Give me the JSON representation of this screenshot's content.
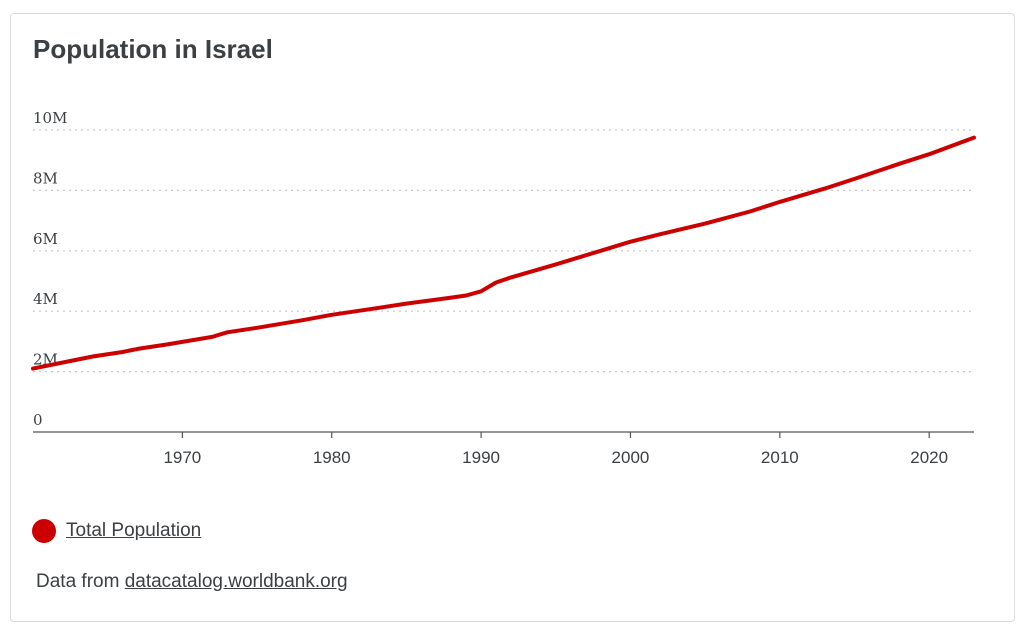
{
  "title": "Population in Israel",
  "colors": {
    "series": "#cc0000",
    "grid": "#c8c8c8",
    "axis": "#555555",
    "text": "#3c4043"
  },
  "legend": {
    "label": "Total Population"
  },
  "source": {
    "prefix": "Data from",
    "link": "datacatalog.worldbank.org"
  },
  "chart_data": {
    "type": "line",
    "title": "Population in Israel",
    "xlabel": "",
    "ylabel": "",
    "xlim": [
      1960,
      2023
    ],
    "ylim": [
      0,
      10000000
    ],
    "x_ticks": [
      1970,
      1980,
      1990,
      2000,
      2010,
      2020
    ],
    "x_tick_labels": [
      "1970",
      "1980",
      "1990",
      "2000",
      "2010",
      "2020"
    ],
    "y_ticks": [
      0,
      2000000,
      4000000,
      6000000,
      8000000,
      10000000
    ],
    "y_tick_labels": [
      "0",
      "2M",
      "4M",
      "6M",
      "8M",
      "10M"
    ],
    "grid": "horizontal dotted",
    "legend_position": "bottom-left",
    "series": [
      {
        "name": "Total Population",
        "x": [
          1960,
          1962,
          1964,
          1966,
          1967,
          1969,
          1972,
          1973,
          1975,
          1978,
          1980,
          1983,
          1985,
          1988,
          1989,
          1990,
          1991,
          1992,
          1995,
          1998,
          2000,
          2002,
          2005,
          2008,
          2010,
          2013,
          2015,
          2018,
          2020,
          2023
        ],
        "values": [
          2100000,
          2300000,
          2500000,
          2650000,
          2750000,
          2900000,
          3150000,
          3300000,
          3450000,
          3700000,
          3880000,
          4100000,
          4250000,
          4450000,
          4520000,
          4660000,
          4950000,
          5120000,
          5550000,
          6000000,
          6300000,
          6550000,
          6900000,
          7300000,
          7620000,
          8060000,
          8380000,
          8880000,
          9200000,
          9750000
        ]
      }
    ]
  }
}
